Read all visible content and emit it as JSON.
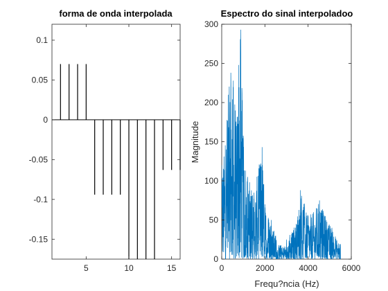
{
  "chart_data": [
    {
      "type": "stem",
      "title": "forma de onda interpolada",
      "xlabel": "",
      "ylabel": "",
      "xlim": [
        1,
        16
      ],
      "ylim": [
        -0.175,
        0.12
      ],
      "xticks": [
        5,
        10,
        15
      ],
      "yticks": [
        0.1,
        0.05,
        0,
        -0.05,
        -0.1,
        -0.15
      ],
      "ytick_labels": [
        "0.1",
        "0.05",
        "0",
        "-0.05",
        "-0.1",
        "-0.15"
      ],
      "x": [
        2,
        3,
        4,
        5,
        6,
        7,
        8,
        9,
        10,
        11,
        12,
        13,
        14,
        15,
        16
      ],
      "values": [
        0.07,
        0.07,
        0.07,
        0.07,
        -0.094,
        -0.094,
        -0.094,
        -0.094,
        -0.175,
        -0.175,
        -0.175,
        -0.175,
        -0.063,
        -0.063,
        -0.063
      ],
      "grid": false,
      "color": "#000000"
    },
    {
      "type": "line",
      "title": "Espectro do sinal interpoladoo",
      "xlabel": "Frequ?ncia (Hz)",
      "ylabel": "Magnitude",
      "xlim": [
        0,
        6000
      ],
      "ylim": [
        0,
        300
      ],
      "xticks": [
        0,
        2000,
        4000,
        6000
      ],
      "yticks": [
        0,
        50,
        100,
        150,
        200,
        250,
        300
      ],
      "grid": false,
      "color": "#0072bd",
      "peaks": [
        {
          "x": 0,
          "y": 120
        },
        {
          "x": 300,
          "y": 210
        },
        {
          "x": 420,
          "y": 238
        },
        {
          "x": 540,
          "y": 228
        },
        {
          "x": 680,
          "y": 170
        },
        {
          "x": 780,
          "y": 248
        },
        {
          "x": 880,
          "y": 293
        },
        {
          "x": 1000,
          "y": 155
        },
        {
          "x": 1200,
          "y": 105
        },
        {
          "x": 1500,
          "y": 85
        },
        {
          "x": 1870,
          "y": 143
        },
        {
          "x": 2000,
          "y": 70
        },
        {
          "x": 2300,
          "y": 50
        },
        {
          "x": 2500,
          "y": 30
        },
        {
          "x": 3000,
          "y": 25
        },
        {
          "x": 3450,
          "y": 45
        },
        {
          "x": 3650,
          "y": 88
        },
        {
          "x": 4000,
          "y": 55
        },
        {
          "x": 4250,
          "y": 60
        },
        {
          "x": 4530,
          "y": 75
        },
        {
          "x": 4800,
          "y": 55
        },
        {
          "x": 5100,
          "y": 40
        },
        {
          "x": 5400,
          "y": 20
        }
      ]
    }
  ]
}
